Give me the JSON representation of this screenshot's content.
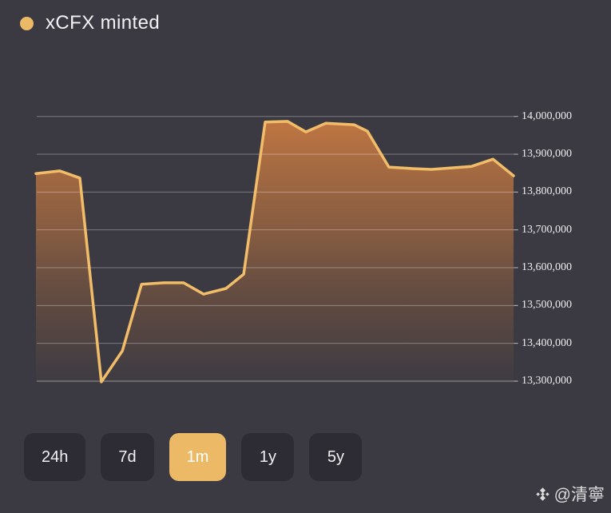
{
  "colors": {
    "background": "#3b3a42",
    "accent_amber": "#ecb966",
    "series_line": "#f2bd69",
    "area_fill": "#c97a42",
    "button_background": "#2d2c34",
    "text_primary": "#f2f2f4"
  },
  "legend": {
    "label": "xCFX minted",
    "marker_color": "#e9b564"
  },
  "controls": {
    "ranges": [
      {
        "label": "24h",
        "active": false
      },
      {
        "label": "7d",
        "active": false
      },
      {
        "label": "1m",
        "active": true
      },
      {
        "label": "1y",
        "active": false
      },
      {
        "label": "5y",
        "active": false
      }
    ]
  },
  "watermark": {
    "icon": "binance-diamond-logo",
    "text": "@清寧"
  },
  "chart_data": {
    "type": "area",
    "title": "xCFX minted",
    "legend_position": "top-left",
    "grid": true,
    "y_axis_side": "right",
    "x_axis_labels_visible": false,
    "selected_range": "1m",
    "ylim": [
      13300000,
      14000000
    ],
    "y_ticks": [
      {
        "value": 14000000,
        "label": "14,000,000"
      },
      {
        "value": 13900000,
        "label": "13,900,000"
      },
      {
        "value": 13800000,
        "label": "13,800,000"
      },
      {
        "value": 13700000,
        "label": "13,700,000"
      },
      {
        "value": 13600000,
        "label": "13,600,000"
      },
      {
        "value": 13500000,
        "label": "13,500,000"
      },
      {
        "value": 13400000,
        "label": "13,400,000"
      },
      {
        "value": 13300000,
        "label": "13,300,000"
      }
    ],
    "series": [
      {
        "name": "xCFX minted",
        "points": [
          {
            "x": 0.0,
            "v": 13849000
          },
          {
            "x": 0.05,
            "v": 13856000
          },
          {
            "x": 0.092,
            "v": 13837000
          },
          {
            "x": 0.137,
            "v": 13298000
          },
          {
            "x": 0.181,
            "v": 13380000
          },
          {
            "x": 0.221,
            "v": 13556000
          },
          {
            "x": 0.268,
            "v": 13560000
          },
          {
            "x": 0.309,
            "v": 13560000
          },
          {
            "x": 0.351,
            "v": 13530000
          },
          {
            "x": 0.398,
            "v": 13545000
          },
          {
            "x": 0.435,
            "v": 13583000
          },
          {
            "x": 0.48,
            "v": 13985000
          },
          {
            "x": 0.527,
            "v": 13987000
          },
          {
            "x": 0.565,
            "v": 13959000
          },
          {
            "x": 0.607,
            "v": 13982000
          },
          {
            "x": 0.666,
            "v": 13978000
          },
          {
            "x": 0.694,
            "v": 13961000
          },
          {
            "x": 0.739,
            "v": 13866000
          },
          {
            "x": 0.789,
            "v": 13862000
          },
          {
            "x": 0.828,
            "v": 13860000
          },
          {
            "x": 0.87,
            "v": 13864000
          },
          {
            "x": 0.912,
            "v": 13868000
          },
          {
            "x": 0.957,
            "v": 13887000
          },
          {
            "x": 1.0,
            "v": 13843000
          }
        ]
      }
    ]
  }
}
